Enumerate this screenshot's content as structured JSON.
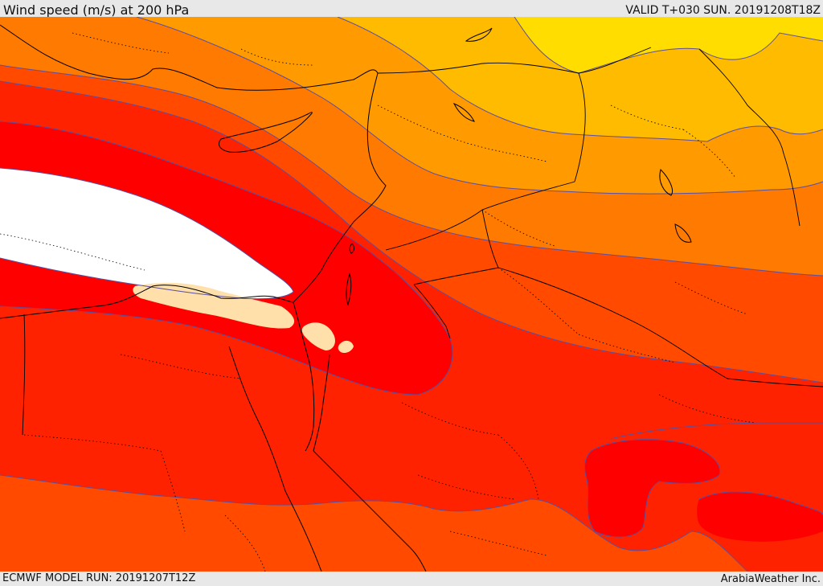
{
  "header": {
    "title": "Wind speed (m/s) at 200 hPa",
    "valid_time": "VALID T+030 SUN. 20191208T18Z"
  },
  "footer": {
    "model_run": "ECMWF MODEL RUN: 20191207T12Z",
    "credit": "ArabiaWeather Inc."
  },
  "map": {
    "field": "wind speed at 200 hPa",
    "contour_line_color": "#5a4fa0",
    "coastline_color": "#000000",
    "border_style": "dotted",
    "shading_colors": {
      "weakest": "#ffdd00",
      "light": "#ffbb00",
      "medium_light": "#ff9a00",
      "medium": "#ff7a00",
      "strong": "#ff4a00",
      "stronger": "#ff2200",
      "very_strong": "#ff0000",
      "peak": "#ffffff",
      "local_minimum": "#ffe0aa"
    }
  }
}
